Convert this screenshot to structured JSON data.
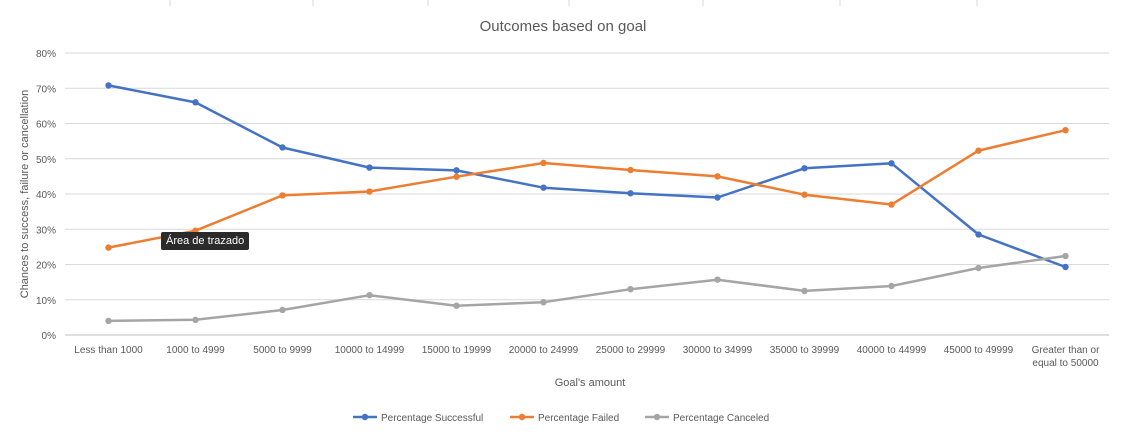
{
  "chart_data": {
    "type": "line",
    "title": "Outcomes based on goal",
    "xlabel": "Goal's amount",
    "ylabel": "Chances to success, failure or cancellation",
    "categories": [
      "Less than 1000",
      "1000 to 4999",
      "5000 to 9999",
      "10000 to 14999",
      "15000 to 19999",
      "20000 to 24999",
      "25000 to 29999",
      "30000 to 34999",
      "35000 to 39999",
      "40000 to 44999",
      "45000 to 49999",
      "Greater than or equal to 50000"
    ],
    "ylim": [
      0,
      80
    ],
    "yticks": [
      "0%",
      "10%",
      "20%",
      "30%",
      "40%",
      "50%",
      "60%",
      "70%",
      "80%"
    ],
    "grid": true,
    "legend": "bottom",
    "series": [
      {
        "name": "Percentage Successful",
        "color": "#4472C4",
        "values": [
          70.8,
          66.0,
          53.2,
          47.5,
          46.7,
          41.8,
          40.2,
          39.0,
          47.3,
          48.7,
          28.5,
          19.3
        ]
      },
      {
        "name": "Percentage Failed",
        "color": "#ED7D31",
        "values": [
          24.8,
          29.6,
          39.6,
          40.7,
          44.9,
          48.8,
          46.8,
          45.0,
          39.8,
          37.0,
          52.3,
          58.1
        ]
      },
      {
        "name": "Percentage Canceled",
        "color": "#A5A5A5",
        "values": [
          4.0,
          4.3,
          7.1,
          11.3,
          8.3,
          9.3,
          13.0,
          15.7,
          12.5,
          13.9,
          19.0,
          22.4
        ]
      }
    ]
  },
  "tooltip": {
    "text": "Área de trazado"
  }
}
